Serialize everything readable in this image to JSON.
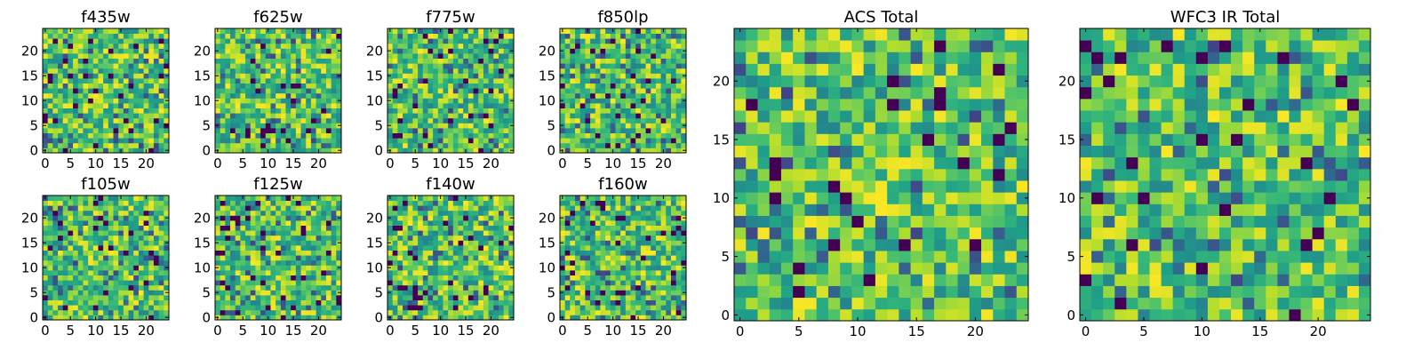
{
  "chart_data": [
    {
      "type": "heatmap",
      "title": "f435w",
      "colormap": "viridis",
      "xlim": [
        0,
        24
      ],
      "ylim": [
        0,
        24
      ],
      "xticks": [
        0,
        5,
        10,
        15,
        20
      ],
      "yticks": [
        0,
        5,
        10,
        15,
        20
      ],
      "grid": false
    },
    {
      "type": "heatmap",
      "title": "f625w",
      "colormap": "viridis",
      "xlim": [
        0,
        24
      ],
      "ylim": [
        0,
        24
      ],
      "xticks": [
        0,
        5,
        10,
        15,
        20
      ],
      "yticks": [
        0,
        5,
        10,
        15,
        20
      ],
      "grid": false
    },
    {
      "type": "heatmap",
      "title": "f775w",
      "colormap": "viridis",
      "xlim": [
        0,
        24
      ],
      "ylim": [
        0,
        24
      ],
      "xticks": [
        0,
        5,
        10,
        15,
        20
      ],
      "yticks": [
        0,
        5,
        10,
        15,
        20
      ],
      "grid": false
    },
    {
      "type": "heatmap",
      "title": "f850lp",
      "colormap": "viridis",
      "xlim": [
        0,
        24
      ],
      "ylim": [
        0,
        24
      ],
      "xticks": [
        0,
        5,
        10,
        15,
        20
      ],
      "yticks": [
        0,
        5,
        10,
        15,
        20
      ],
      "grid": false
    },
    {
      "type": "heatmap",
      "title": "f105w",
      "colormap": "viridis",
      "xlim": [
        0,
        24
      ],
      "ylim": [
        0,
        24
      ],
      "xticks": [
        0,
        5,
        10,
        15,
        20
      ],
      "yticks": [
        0,
        5,
        10,
        15,
        20
      ],
      "grid": false
    },
    {
      "type": "heatmap",
      "title": "f125w",
      "colormap": "viridis",
      "xlim": [
        0,
        24
      ],
      "ylim": [
        0,
        24
      ],
      "xticks": [
        0,
        5,
        10,
        15,
        20
      ],
      "yticks": [
        0,
        5,
        10,
        15,
        20
      ],
      "grid": false
    },
    {
      "type": "heatmap",
      "title": "f140w",
      "colormap": "viridis",
      "xlim": [
        0,
        24
      ],
      "ylim": [
        0,
        24
      ],
      "xticks": [
        0,
        5,
        10,
        15,
        20
      ],
      "yticks": [
        0,
        5,
        10,
        15,
        20
      ],
      "grid": false
    },
    {
      "type": "heatmap",
      "title": "f160w",
      "colormap": "viridis",
      "xlim": [
        0,
        24
      ],
      "ylim": [
        0,
        24
      ],
      "xticks": [
        0,
        5,
        10,
        15,
        20
      ],
      "yticks": [
        0,
        5,
        10,
        15,
        20
      ],
      "grid": false
    },
    {
      "type": "heatmap",
      "title": "ACS Total",
      "colormap": "viridis",
      "xlim": [
        0,
        24
      ],
      "ylim": [
        0,
        24
      ],
      "xticks": [
        0,
        5,
        10,
        15,
        20
      ],
      "yticks": [
        0,
        5,
        10,
        15,
        20
      ],
      "grid": false
    },
    {
      "type": "heatmap",
      "title": "WFC3 IR Total",
      "colormap": "viridis",
      "xlim": [
        0,
        24
      ],
      "ylim": [
        0,
        24
      ],
      "xticks": [
        0,
        5,
        10,
        15,
        20
      ],
      "yticks": [
        0,
        5,
        10,
        15,
        20
      ],
      "grid": false
    }
  ]
}
